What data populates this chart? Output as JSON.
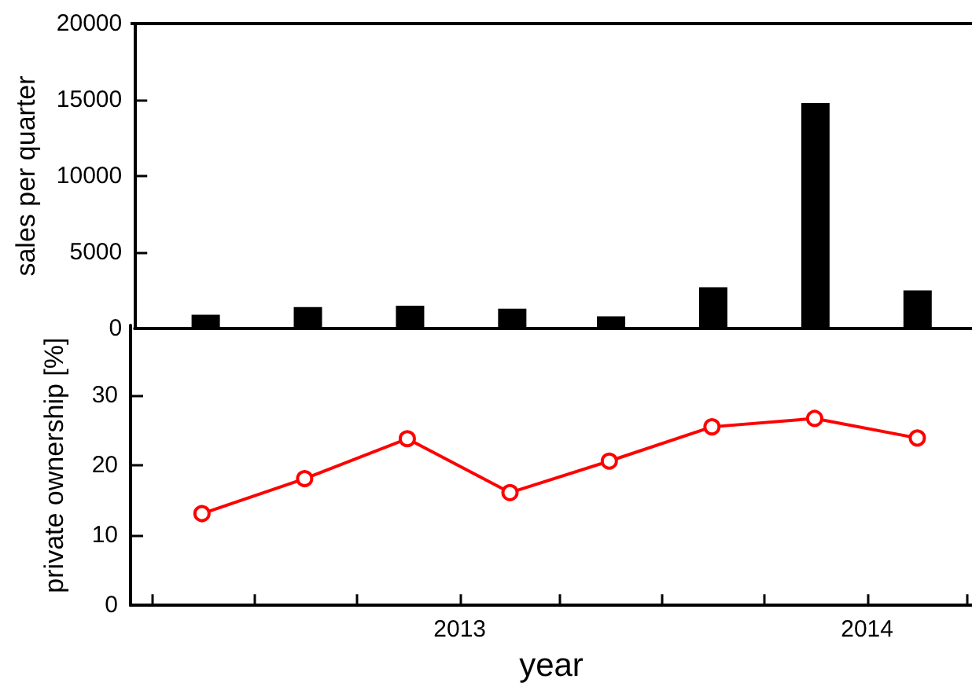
{
  "chart_data": [
    {
      "type": "bar",
      "ylabel": "sales per quarter",
      "x": [
        "2012-05-15",
        "2012-08-15",
        "2012-11-15",
        "2013-02-15",
        "2013-05-15",
        "2013-08-15",
        "2013-11-15",
        "2014-02-15"
      ],
      "series": [
        {
          "color": "#000000",
          "values": [
            900,
            1400,
            1500,
            1300,
            800,
            2700,
            14800,
            2500
          ]
        }
      ],
      "xlim": [
        "2012-03-12",
        "2014-04-05"
      ],
      "ylim": [
        0,
        20000
      ],
      "yticks": [
        0,
        5000,
        10000,
        15000,
        20000
      ],
      "tick_labels": "y"
    },
    {
      "type": "line",
      "xlabel": "year",
      "ylabel": "private ownership [%]",
      "x": [
        "2012-05-15",
        "2012-08-15",
        "2012-11-15",
        "2013-02-15",
        "2013-05-15",
        "2013-08-15",
        "2013-11-15",
        "2014-02-15"
      ],
      "series": [
        {
          "color": "#ff0000",
          "values": [
            13.1,
            18.1,
            23.8,
            16.1,
            20.6,
            25.5,
            26.7,
            23.9
          ]
        }
      ],
      "marker": "circle",
      "line_style": "solid",
      "xlim": [
        "2012-03-12",
        "2014-04-05"
      ],
      "xticks": [
        {
          "value": "2012-04",
          "label": null
        },
        {
          "value": "2012-07",
          "label": null
        },
        {
          "value": "2012-10",
          "label": null
        },
        {
          "value": "2013",
          "label": "2013"
        },
        {
          "value": "2013-04",
          "label": null
        },
        {
          "value": "2013-07",
          "label": null
        },
        {
          "value": "2013-10",
          "label": null
        },
        {
          "value": "2014",
          "label": "2014"
        },
        {
          "value": "2014-04",
          "label": null
        }
      ],
      "ylim": [
        0,
        40
      ],
      "yticks": [
        0,
        10,
        20,
        30
      ]
    }
  ]
}
